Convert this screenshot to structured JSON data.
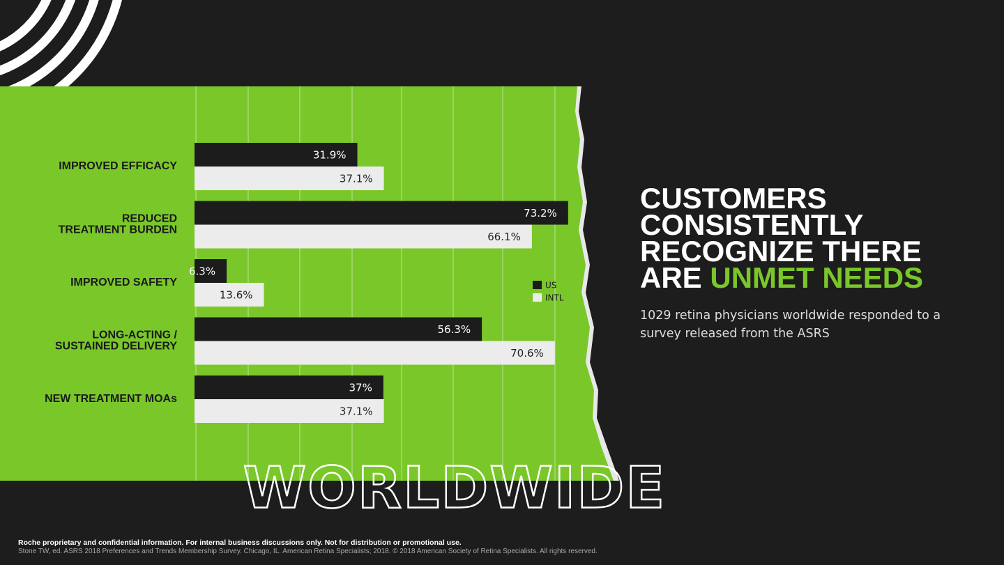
{
  "chart_data": {
    "type": "bar",
    "orientation": "horizontal",
    "categories": [
      "IMPROVED EFFICACY",
      "REDUCED\nTREATMENT BURDEN",
      "IMPROVED SAFETY",
      "LONG-ACTING /\nSUSTAINED DELIVERY",
      "NEW TREATMENT MOAs"
    ],
    "series": [
      {
        "name": "US",
        "color": "#1c1c1c",
        "values": [
          31.9,
          73.2,
          6.3,
          56.3,
          37
        ],
        "value_labels": [
          "31.9%",
          "73.2%",
          "6.3%",
          "56.3%",
          "37%"
        ]
      },
      {
        "name": "INTL",
        "color": "#ececec",
        "values": [
          37.1,
          66.1,
          13.6,
          70.6,
          37.1
        ],
        "value_labels": [
          "37.1%",
          "66.1%",
          "13.6%",
          "70.6%",
          "37.1%"
        ]
      }
    ],
    "watermark": "WORLDWIDE"
  },
  "headline": {
    "title": "CUSTOMERS CONSISTENTLY RECOGNIZE THERE ARE",
    "title_highlight": "UNMET NEEDS",
    "subtitle": "1029 retina physicians worldwide responded to a survey released from the ASRS"
  },
  "footer": {
    "notice": "Roche proprietary and confidential information. For internal business discussions only. Not for distribution or promotional use.",
    "source": "Stone TW, ed. ASRS 2018 Preferences and Trends Membership Survey. Chicago, IL. American Retina Specialists; 2018. © 2018 American Society of Retina Specialists. All rights reserved."
  }
}
